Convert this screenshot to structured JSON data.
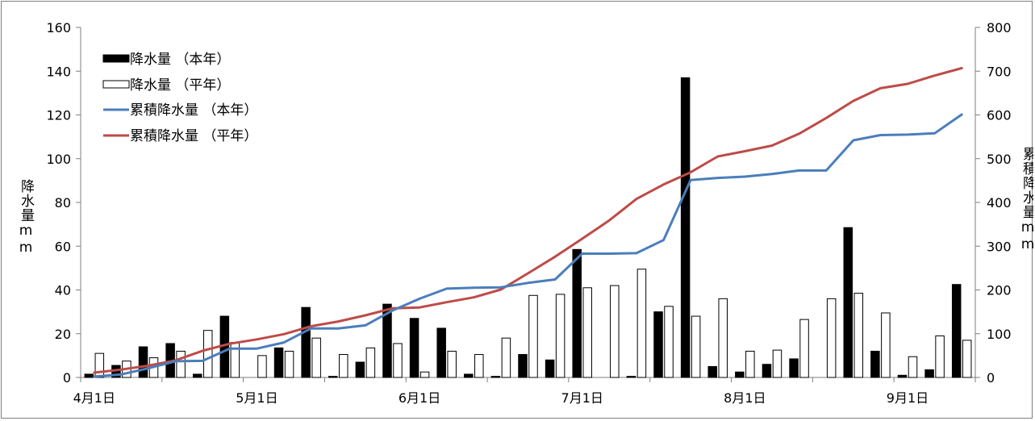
{
  "chart_data": {
    "type": "bar+line",
    "title": "",
    "ylabel_left": "降水量mm",
    "ylabel_right": "累積降水量mm",
    "ylim_left": [
      0,
      160
    ],
    "ylim_right": [
      0,
      800
    ],
    "yticks_left": [
      "0",
      "20",
      "40",
      "60",
      "80",
      "100",
      "120",
      "140",
      "160"
    ],
    "yticks_right": [
      "0",
      "100",
      "200",
      "300",
      "400",
      "500",
      "600",
      "700",
      "800"
    ],
    "xtick_labels": [
      "4月1日",
      "5月1日",
      "6月1日",
      "7月1日",
      "8月1日",
      "9月1日"
    ],
    "xtick_period_index": [
      0,
      6,
      12,
      18,
      24,
      30
    ],
    "periods": 33,
    "legend": {
      "position": "top-left",
      "entries": [
        "降水量 （本年）",
        "降水量 （平年）",
        "累積降水量 （本年）",
        "累積降水量 （平年）"
      ]
    },
    "series": [
      {
        "name": "降水量 （本年）",
        "kind": "bar",
        "axis": "left",
        "color": "#000000",
        "values": [
          1.5,
          5.5,
          14,
          15.5,
          1.5,
          28,
          0,
          13.5,
          32,
          0.5,
          7,
          33.5,
          27,
          22.5,
          1.5,
          0.5,
          10.5,
          8,
          58.5,
          0,
          0.5,
          30,
          137,
          5,
          2.5,
          6,
          8.5,
          0,
          68.5,
          12,
          1,
          3.5,
          42.5
        ]
      },
      {
        "name": "降水量 （平年）",
        "kind": "bar",
        "axis": "left",
        "color": "#ffffff",
        "values": [
          11,
          7.5,
          9,
          12,
          21.5,
          16,
          10,
          12,
          18,
          10.5,
          13.5,
          15.5,
          2.5,
          12,
          10.5,
          18,
          37.5,
          38,
          41,
          42,
          49.5,
          32.5,
          28,
          36,
          12,
          12.5,
          26.5,
          36,
          38.5,
          29.5,
          9.5,
          19,
          17
        ]
      },
      {
        "name": "累積降水量 （本年）",
        "kind": "line",
        "axis": "right",
        "color": "#4a7ebb",
        "values": [
          2,
          7,
          21,
          37,
          38,
          66,
          66,
          80,
          112,
          112,
          119,
          153,
          180,
          203,
          205,
          206,
          216,
          224,
          283,
          283,
          284,
          314,
          451,
          456,
          459,
          465,
          473,
          473,
          542,
          554,
          555,
          558,
          601
        ]
      },
      {
        "name": "累積降水量 （平年）",
        "kind": "line",
        "axis": "right",
        "color": "#be4b48",
        "values": [
          11,
          18,
          27,
          39,
          61,
          77,
          87,
          99,
          117,
          128,
          142,
          158,
          160,
          172,
          183,
          201,
          238,
          276,
          317,
          359,
          408,
          441,
          469,
          505,
          517,
          530,
          557,
          593,
          632,
          661,
          671,
          690,
          707
        ]
      }
    ]
  }
}
